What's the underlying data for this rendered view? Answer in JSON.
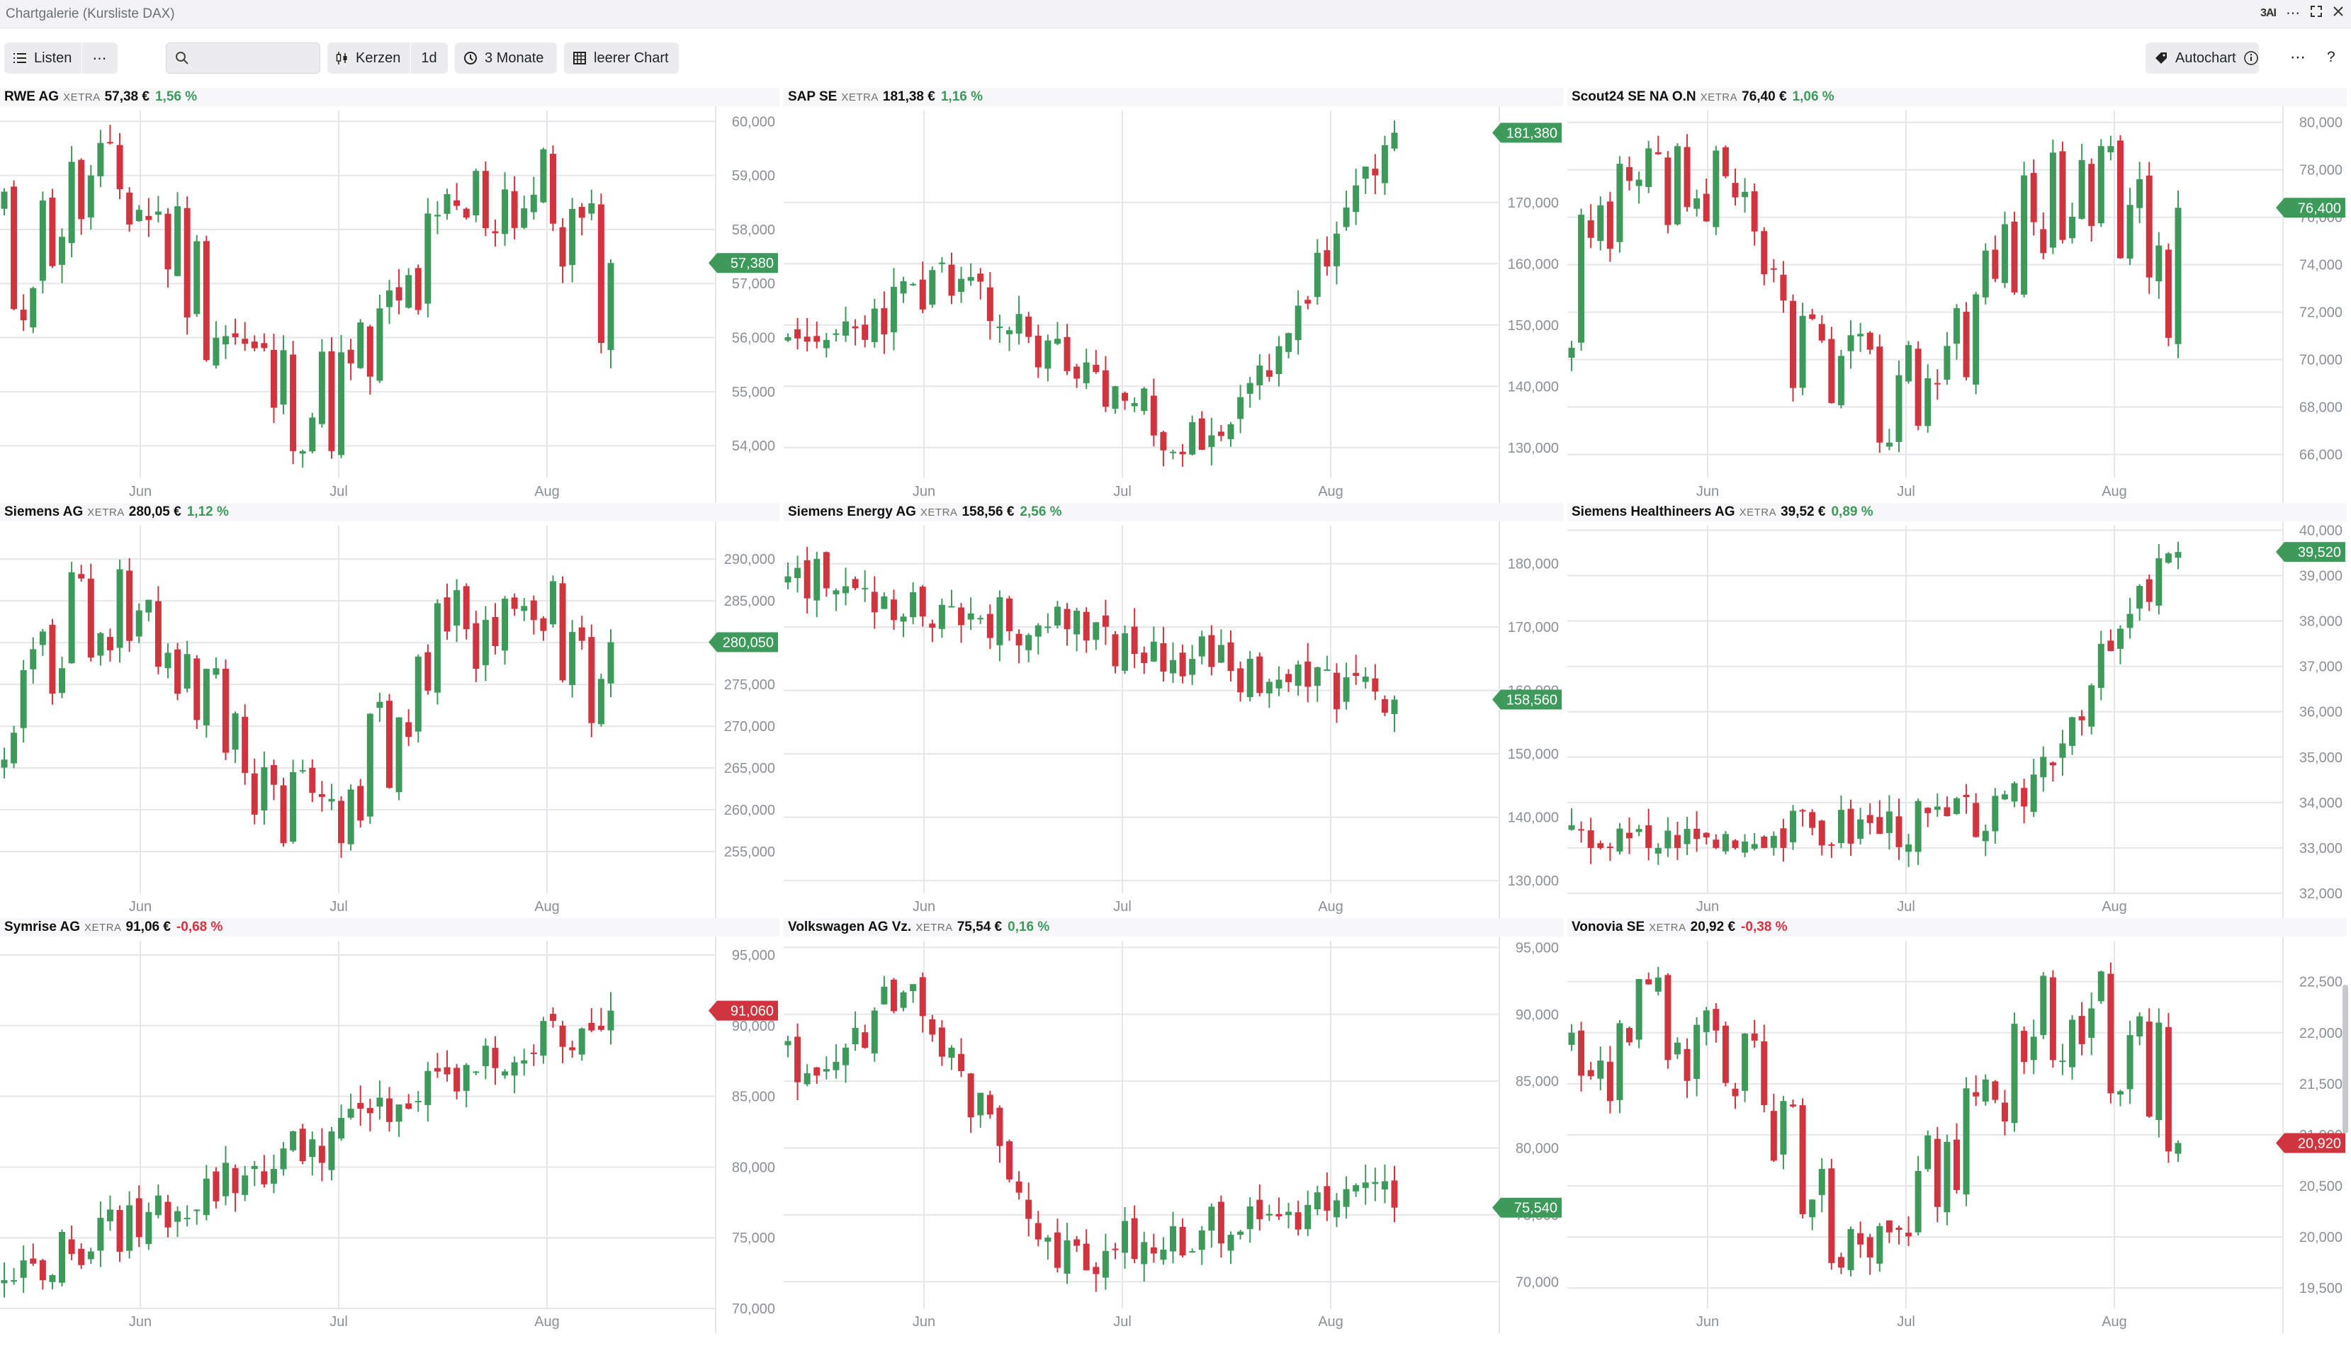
{
  "window": {
    "title": "Chartgalerie (Kursliste DAX)",
    "ai_label": "3AI"
  },
  "toolbar": {
    "lists_label": "Listen",
    "more_label": "⋯",
    "search_placeholder": "",
    "candles_label": "Kerzen",
    "interval_label": "1d",
    "period_label": "3 Monate",
    "empty_chart_label": "leerer Chart",
    "autochart_label": "Autochart",
    "right_more_label": "⋯",
    "help_label": "?"
  },
  "colors": {
    "up": "#3d9a5b",
    "down": "#d0343f",
    "grid": "#e6e6ea",
    "axis_text": "#8b8f96"
  },
  "x_axis_labels": [
    "Jun",
    "Jul",
    "Aug"
  ],
  "panels": [
    {
      "name": "RWE AG",
      "exchange": "XETRA",
      "price": "57,38 €",
      "change": "1,56 %",
      "direction": "up",
      "last_value_label": "57,380",
      "chart_data": {
        "type": "candlestick",
        "ylim": [
          53400,
          60200
        ],
        "ticks": [
          54000,
          55000,
          56000,
          57000,
          58000,
          59000,
          60000
        ],
        "tick_labels": [
          "54,000",
          "55,000",
          "56,000",
          "57,000",
          "58,000",
          "59,000",
          "60,000"
        ],
        "first": 58700,
        "last": 57380,
        "low": 53900,
        "high": 59600,
        "volatility": 0.018,
        "seed": 11,
        "shape": "range"
      }
    },
    {
      "name": "SAP SE",
      "exchange": "XETRA",
      "price": "181,38 €",
      "change": "1,16 %",
      "direction": "up",
      "last_value_label": "181,380",
      "chart_data": {
        "type": "candlestick",
        "ylim": [
          125000,
          185000
        ],
        "ticks": [
          130000,
          140000,
          150000,
          160000,
          170000
        ],
        "tick_labels": [
          "130,000",
          "140,000",
          "150,000",
          "160,000",
          "170,000"
        ],
        "first": 148000,
        "last": 181380,
        "low": 128000,
        "high": 181380,
        "volatility": 0.012,
        "seed": 23,
        "shape": "vdip"
      }
    },
    {
      "name": "Scout24 SE NA O.N",
      "exchange": "XETRA",
      "price": "76,40 €",
      "change": "1,06 %",
      "direction": "up",
      "last_value_label": "76,400",
      "chart_data": {
        "type": "candlestick",
        "ylim": [
          65000,
          80500
        ],
        "ticks": [
          66000,
          68000,
          70000,
          72000,
          74000,
          76000,
          78000,
          80000
        ],
        "tick_labels": [
          "66,000",
          "68,000",
          "70,000",
          "72,000",
          "74,000",
          "76,000",
          "78,000",
          "80,000"
        ],
        "first": 70500,
        "last": 76400,
        "low": 66500,
        "high": 79000,
        "volatility": 0.02,
        "seed": 37,
        "shape": "range"
      }
    },
    {
      "name": "Siemens AG",
      "exchange": "XETRA",
      "price": "280,05 €",
      "change": "1,12 %",
      "direction": "up",
      "last_value_label": "280,050",
      "chart_data": {
        "type": "candlestick",
        "ylim": [
          250000,
          294000
        ],
        "ticks": [
          255000,
          260000,
          265000,
          270000,
          275000,
          280000,
          285000,
          290000
        ],
        "tick_labels": [
          "255,000",
          "260,000",
          "265,000",
          "270,000",
          "275,000",
          "280,000",
          "285,000",
          "290,000"
        ],
        "first": 266000,
        "last": 280050,
        "low": 256000,
        "high": 289000,
        "volatility": 0.012,
        "seed": 41,
        "shape": "range"
      }
    },
    {
      "name": "Siemens Energy AG",
      "exchange": "XETRA",
      "price": "158,56 €",
      "change": "2,56 %",
      "direction": "up",
      "last_value_label": "158,560",
      "chart_data": {
        "type": "candlestick",
        "ylim": [
          128000,
          186000
        ],
        "ticks": [
          130000,
          140000,
          150000,
          160000,
          170000,
          180000
        ],
        "tick_labels": [
          "130,000",
          "140,000",
          "150,000",
          "160,000",
          "170,000",
          "180,000"
        ],
        "first": 178000,
        "last": 158560,
        "low": 134000,
        "high": 183000,
        "volatility": 0.018,
        "seed": 53,
        "shape": "down"
      }
    },
    {
      "name": "Siemens Healthineers AG",
      "exchange": "XETRA",
      "price": "39,52 €",
      "change": "0,89 %",
      "direction": "up",
      "last_value_label": "39,520",
      "chart_data": {
        "type": "candlestick",
        "ylim": [
          32000,
          40100
        ],
        "ticks": [
          32000,
          33000,
          34000,
          35000,
          36000,
          37000,
          38000,
          39000,
          40000
        ],
        "tick_labels": [
          "32,000",
          "33,000",
          "34,000",
          "35,000",
          "36,000",
          "37,000",
          "38,000",
          "39,000",
          "40,000"
        ],
        "first": 33500,
        "last": 39520,
        "low": 33000,
        "high": 39700,
        "volatility": 0.01,
        "seed": 67,
        "shape": "lateup"
      }
    },
    {
      "name": "Symrise AG",
      "exchange": "XETRA",
      "price": "91,06 €",
      "change": "-0,68 %",
      "direction": "down",
      "last_value_label": "91,060",
      "chart_data": {
        "type": "candlestick",
        "ylim": [
          70000,
          96000
        ],
        "ticks": [
          70000,
          75000,
          80000,
          85000,
          90000,
          95000
        ],
        "tick_labels": [
          "70,000",
          "75,000",
          "80,000",
          "85,000",
          "90,000",
          "95,000"
        ],
        "first": 72000,
        "last": 91060,
        "low": 72000,
        "high": 94000,
        "volatility": 0.01,
        "seed": 79,
        "shape": "up"
      }
    },
    {
      "name": "Volkswagen AG Vz.",
      "exchange": "XETRA",
      "price": "75,54 €",
      "change": "0,16 %",
      "direction": "up",
      "last_value_label": "75,540",
      "chart_data": {
        "type": "candlestick",
        "ylim": [
          68000,
          95500
        ],
        "ticks": [
          70000,
          75000,
          80000,
          85000,
          90000,
          95000
        ],
        "tick_labels": [
          "70,000",
          "75,000",
          "80,000",
          "85,000",
          "90,000",
          "95,000"
        ],
        "first": 88000,
        "last": 75540,
        "low": 70500,
        "high": 93000,
        "volatility": 0.012,
        "seed": 83,
        "shape": "peakdown"
      }
    },
    {
      "name": "Vonovia SE",
      "exchange": "XETRA",
      "price": "20,92 €",
      "change": "-0,38 %",
      "direction": "down",
      "last_value_label": "20,920",
      "chart_data": {
        "type": "candlestick",
        "ylim": [
          19300,
          22900
        ],
        "ticks": [
          19500,
          20000,
          20500,
          21000,
          21500,
          22000,
          22500
        ],
        "tick_labels": [
          "19,500",
          "20,000",
          "20,500",
          "21,000",
          "21,500",
          "22,000",
          "22,500"
        ],
        "first": 22000,
        "last": 20920,
        "low": 19700,
        "high": 22600,
        "volatility": 0.018,
        "seed": 97,
        "shape": "range"
      }
    }
  ]
}
